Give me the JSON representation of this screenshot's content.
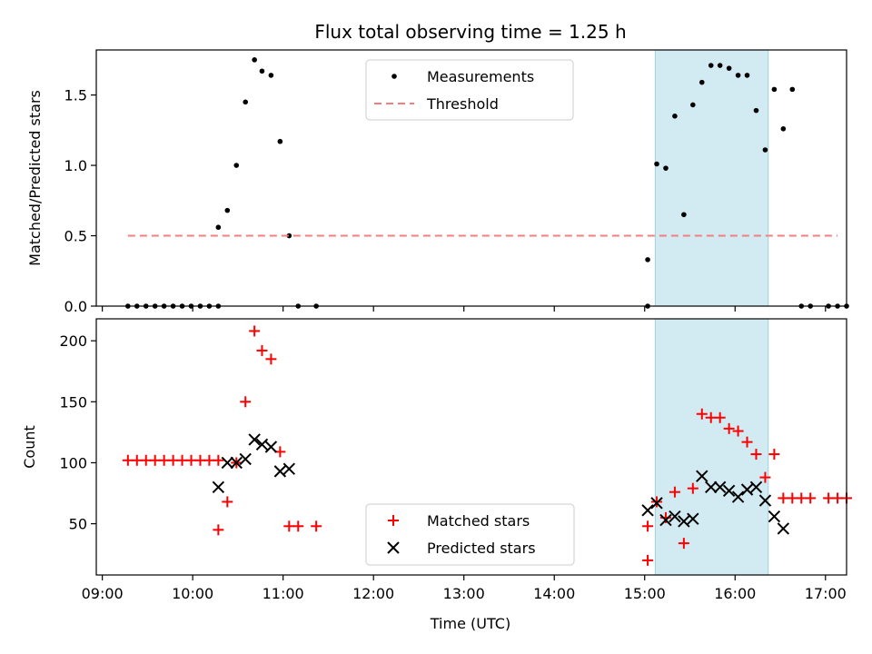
{
  "title": "Flux total observing time = 1.25 h",
  "colors": {
    "measurement": "#000000",
    "threshold": "#f08080",
    "matched": "#ff0000",
    "predicted": "#000000",
    "span": "#add8e6"
  },
  "chart_data": [
    {
      "type": "scatter",
      "xlabel": "",
      "ylabel": "Matched/Predicted stars",
      "xlim": [
        "08:56",
        "17:14"
      ],
      "ylim": [
        0,
        1.82
      ],
      "yticks": [
        0.0,
        0.5,
        1.0,
        1.5
      ],
      "yticklabels": [
        "0.0",
        "0.5",
        "1.0",
        "1.5"
      ],
      "legend": {
        "placement": "top-center",
        "entries": [
          "Measurements",
          "Threshold"
        ]
      },
      "shaded_span": {
        "x": [
          "15:07",
          "16:22"
        ]
      },
      "series": [
        {
          "name": "Measurements",
          "marker": "dot",
          "points": [
            [
              "09:17",
              0
            ],
            [
              "09:23",
              0
            ],
            [
              "09:29",
              0
            ],
            [
              "09:35",
              0
            ],
            [
              "09:41",
              0
            ],
            [
              "09:47",
              0
            ],
            [
              "09:53",
              0
            ],
            [
              "09:59",
              0
            ],
            [
              "10:05",
              0
            ],
            [
              "10:11",
              0
            ],
            [
              "10:17",
              0
            ],
            [
              "10:17",
              0.56
            ],
            [
              "10:23",
              0.68
            ],
            [
              "10:29",
              1.0
            ],
            [
              "10:35",
              1.45
            ],
            [
              "10:41",
              1.75
            ],
            [
              "10:46",
              1.67
            ],
            [
              "10:52",
              1.64
            ],
            [
              "10:58",
              1.17
            ],
            [
              "11:04",
              0.5
            ],
            [
              "11:10",
              0
            ],
            [
              "11:22",
              0
            ],
            [
              "15:02",
              0
            ],
            [
              "15:02",
              0.33
            ],
            [
              "15:08",
              1.01
            ],
            [
              "15:14",
              0.98
            ],
            [
              "15:20",
              1.35
            ],
            [
              "15:26",
              0.65
            ],
            [
              "15:32",
              1.43
            ],
            [
              "15:38",
              1.59
            ],
            [
              "15:44",
              1.71
            ],
            [
              "15:50",
              1.71
            ],
            [
              "15:56",
              1.69
            ],
            [
              "16:02",
              1.64
            ],
            [
              "16:08",
              1.64
            ],
            [
              "16:14",
              1.39
            ],
            [
              "16:20",
              1.11
            ],
            [
              "16:26",
              1.54
            ],
            [
              "16:32",
              1.26
            ],
            [
              "16:38",
              1.54
            ],
            [
              "16:44",
              0
            ],
            [
              "16:50",
              0
            ],
            [
              "17:02",
              0
            ],
            [
              "17:08",
              0
            ],
            [
              "17:14",
              0
            ]
          ]
        },
        {
          "name": "Threshold",
          "marker": "dashed-line",
          "points": [
            [
              "09:17",
              0.5
            ],
            [
              "17:08",
              0.5
            ]
          ]
        }
      ]
    },
    {
      "type": "scatter",
      "xlabel": "Time (UTC)",
      "ylabel": "Count",
      "xlim": [
        "08:56",
        "17:14"
      ],
      "ylim": [
        8,
        218
      ],
      "yticks": [
        50,
        100,
        150,
        200
      ],
      "yticklabels": [
        "50",
        "100",
        "150",
        "200"
      ],
      "xticks": [
        "09:00",
        "10:00",
        "11:00",
        "12:00",
        "13:00",
        "14:00",
        "15:00",
        "16:00",
        "17:00"
      ],
      "legend": {
        "placement": "bottom-center",
        "entries": [
          "Matched stars",
          "Predicted stars"
        ]
      },
      "shaded_span": {
        "x": [
          "15:07",
          "16:22"
        ]
      },
      "series": [
        {
          "name": "Matched stars",
          "marker": "plus",
          "points": [
            [
              "09:17",
              102
            ],
            [
              "09:23",
              102
            ],
            [
              "09:29",
              102
            ],
            [
              "09:35",
              102
            ],
            [
              "09:41",
              102
            ],
            [
              "09:47",
              102
            ],
            [
              "09:53",
              102
            ],
            [
              "09:59",
              102
            ],
            [
              "10:05",
              102
            ],
            [
              "10:11",
              102
            ],
            [
              "10:17",
              102
            ],
            [
              "10:17",
              45
            ],
            [
              "10:23",
              68
            ],
            [
              "10:29",
              100
            ],
            [
              "10:35",
              150
            ],
            [
              "10:41",
              208
            ],
            [
              "10:46",
              192
            ],
            [
              "10:52",
              185
            ],
            [
              "10:58",
              109
            ],
            [
              "11:04",
              48
            ],
            [
              "11:10",
              48
            ],
            [
              "11:22",
              48
            ],
            [
              "15:02",
              48
            ],
            [
              "15:02",
              20
            ],
            [
              "15:08",
              68
            ],
            [
              "15:14",
              55
            ],
            [
              "15:20",
              76
            ],
            [
              "15:26",
              34
            ],
            [
              "15:32",
              79
            ],
            [
              "15:38",
              140
            ],
            [
              "15:44",
              137
            ],
            [
              "15:50",
              137
            ],
            [
              "15:56",
              128
            ],
            [
              "16:02",
              126
            ],
            [
              "16:08",
              117
            ],
            [
              "16:14",
              107
            ],
            [
              "16:20",
              88
            ],
            [
              "16:26",
              107
            ],
            [
              "16:32",
              71
            ],
            [
              "16:38",
              71
            ],
            [
              "16:44",
              71
            ],
            [
              "16:50",
              71
            ],
            [
              "17:02",
              71
            ],
            [
              "17:08",
              71
            ],
            [
              "17:14",
              71
            ]
          ]
        },
        {
          "name": "Predicted stars",
          "marker": "x",
          "points": [
            [
              "10:17",
              80
            ],
            [
              "10:23",
              100
            ],
            [
              "10:29",
              100
            ],
            [
              "10:35",
              103
            ],
            [
              "10:41",
              119
            ],
            [
              "10:46",
              115
            ],
            [
              "10:52",
              113
            ],
            [
              "10:58",
              93
            ],
            [
              "11:04",
              95
            ],
            [
              "15:02",
              61
            ],
            [
              "15:08",
              67
            ],
            [
              "15:14",
              53
            ],
            [
              "15:20",
              56
            ],
            [
              "15:26",
              52
            ],
            [
              "15:32",
              54
            ],
            [
              "15:38",
              89
            ],
            [
              "15:44",
              80
            ],
            [
              "15:50",
              80
            ],
            [
              "15:56",
              77
            ],
            [
              "16:02",
              72
            ],
            [
              "16:08",
              78
            ],
            [
              "16:14",
              80
            ],
            [
              "16:20",
              69
            ],
            [
              "16:26",
              56
            ],
            [
              "16:32",
              46
            ]
          ]
        }
      ]
    }
  ]
}
